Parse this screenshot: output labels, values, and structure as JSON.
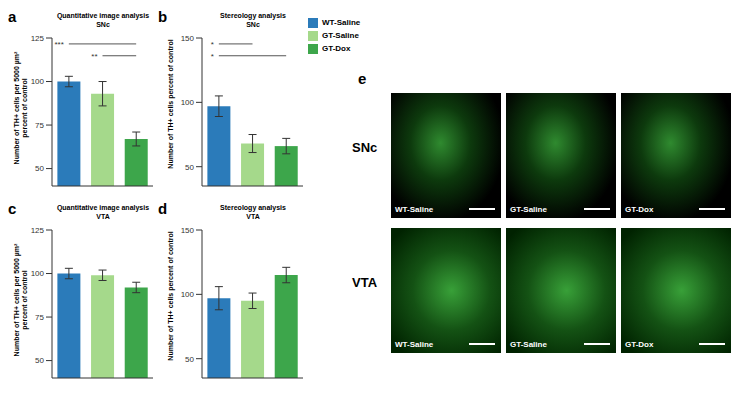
{
  "chart_data": [
    {
      "panel": "a",
      "type": "bar",
      "title": "Quantitative image analysis",
      "subtitle": "SNc",
      "y_label": "Number of TH+ cells per 5000 µm²\npercent of control",
      "categories": [
        "WT-Saline",
        "GT-Saline",
        "GT-Dox"
      ],
      "values": [
        100,
        93,
        67
      ],
      "errors": [
        3,
        7,
        4
      ],
      "colors": [
        "#2b7bba",
        "#a5d98b",
        "#3da64b"
      ],
      "ylim": [
        40,
        125
      ],
      "yticks": [
        50,
        75,
        100,
        125
      ],
      "tick_labels": "y",
      "significance": [
        {
          "between": [
            "WT-Saline",
            "GT-Dox"
          ],
          "label": "***"
        },
        {
          "between": [
            "GT-Saline",
            "GT-Dox"
          ],
          "label": "**"
        }
      ]
    },
    {
      "panel": "b",
      "type": "bar",
      "title": "Stereology analysis",
      "subtitle": "SNc",
      "y_label": "Number of TH+ cells percent of control",
      "categories": [
        "WT-Saline",
        "GT-Saline",
        "GT-Dox"
      ],
      "values": [
        97,
        68,
        66
      ],
      "errors": [
        8,
        7,
        6
      ],
      "colors": [
        "#2b7bba",
        "#a5d98b",
        "#3da64b"
      ],
      "ylim": [
        35,
        150
      ],
      "yticks": [
        50,
        100,
        150
      ],
      "tick_labels": "y",
      "legend": "right",
      "significance": [
        {
          "between": [
            "WT-Saline",
            "GT-Saline"
          ],
          "label": "*"
        },
        {
          "between": [
            "WT-Saline",
            "GT-Dox"
          ],
          "label": "*"
        }
      ]
    },
    {
      "panel": "c",
      "type": "bar",
      "title": "Quantitative image analysis",
      "subtitle": "VTA",
      "y_label": "Number of TH+ cells per 5000 µm²\npercent of control",
      "categories": [
        "WT-Saline",
        "GT-Saline",
        "GT-Dox"
      ],
      "values": [
        100,
        99,
        92
      ],
      "errors": [
        3,
        3,
        3
      ],
      "colors": [
        "#2b7bba",
        "#a5d98b",
        "#3da64b"
      ],
      "ylim": [
        40,
        125
      ],
      "yticks": [
        50,
        75,
        100,
        125
      ],
      "tick_labels": "y"
    },
    {
      "panel": "d",
      "type": "bar",
      "title": "Stereology analysis",
      "subtitle": "VTA",
      "y_label": "Number of TH+ cells percent of control",
      "categories": [
        "WT-Saline",
        "GT-Saline",
        "GT-Dox"
      ],
      "values": [
        97,
        95,
        115
      ],
      "errors": [
        9,
        6,
        6
      ],
      "colors": [
        "#2b7bba",
        "#a5d98b",
        "#3da64b"
      ],
      "ylim": [
        35,
        150
      ],
      "yticks": [
        50,
        100,
        150
      ],
      "tick_labels": "y"
    }
  ],
  "image_panel": {
    "panel": "e",
    "rows": [
      "SNc",
      "VTA"
    ],
    "columns": [
      "WT-Saline",
      "GT-Saline",
      "GT-Dox"
    ]
  }
}
